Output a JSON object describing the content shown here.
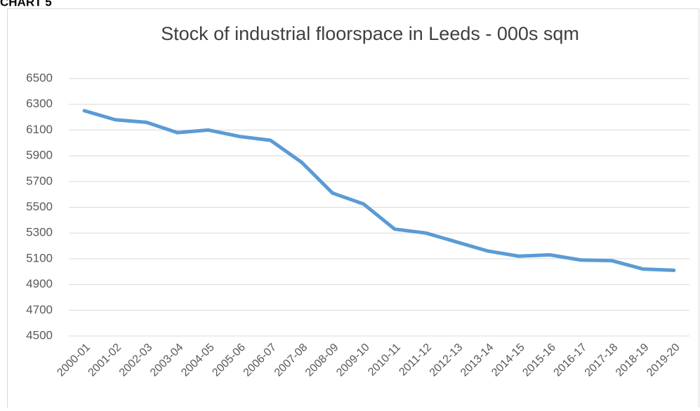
{
  "header": "CHART 5",
  "chart_data": {
    "type": "line",
    "title": "Stock of industrial floorspace in Leeds - 000s sqm",
    "categories": [
      "2000-01",
      "2001-02",
      "2002-03",
      "2003-04",
      "2004-05",
      "2005-06",
      "2006-07",
      "2007-08",
      "2008-09",
      "2009-10",
      "2010-11",
      "2011-12",
      "2012-13",
      "2013-14",
      "2014-15",
      "2015-16",
      "2016-17",
      "2017-18",
      "2018-19",
      "2019-20"
    ],
    "series": [
      {
        "color": "#5b9bd5",
        "values": [
          6250,
          6180,
          6160,
          6080,
          6100,
          6050,
          6020,
          5850,
          5610,
          5525,
          5330,
          5300,
          5230,
          5160,
          5120,
          5130,
          5090,
          5085,
          5020,
          5010
        ]
      }
    ],
    "ylim": [
      4500,
      6500
    ],
    "yticks": [
      4500,
      4700,
      4900,
      5100,
      5300,
      5500,
      5700,
      5900,
      6100,
      6300,
      6500
    ],
    "grid": true
  }
}
